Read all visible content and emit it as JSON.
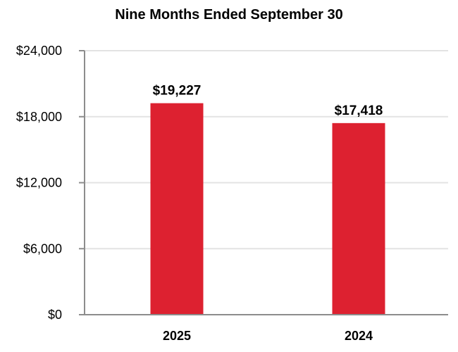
{
  "chart_data": {
    "type": "bar",
    "title": "Nine Months Ended September 30",
    "categories": [
      "2025",
      "2024"
    ],
    "values": [
      19227,
      17418
    ],
    "data_labels": [
      "$19,227",
      "$17,418"
    ],
    "yticks": [
      0,
      6000,
      12000,
      18000,
      24000
    ],
    "ytick_labels": [
      "$0",
      "$6,000",
      "$12,000",
      "$18,000",
      "$24,000"
    ],
    "ylim": [
      0,
      24000
    ],
    "grid": true,
    "legend": false,
    "colors": {
      "bar": "#DD2130",
      "grid": "#E3E3E3",
      "axis": "#8C8C8C"
    }
  }
}
